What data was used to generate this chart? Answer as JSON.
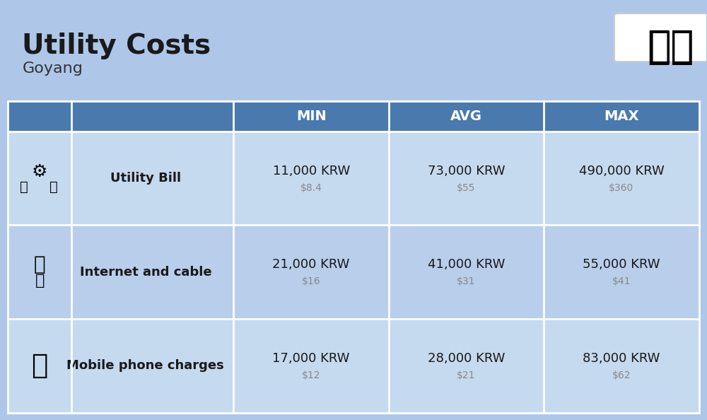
{
  "title": "Utility Costs",
  "subtitle": "Goyang",
  "background_color": "#aec6e8",
  "header_bg_color": "#4a7aad",
  "header_text_color": "#ffffff",
  "row_bg_color_1": "#c5d9ef",
  "row_bg_color_2": "#b8ceea",
  "table_border_color": "#ffffff",
  "col_headers": [
    "MIN",
    "AVG",
    "MAX"
  ],
  "rows": [
    {
      "label": "Utility Bill",
      "icon": "utility",
      "values_krw": [
        "11,000 KRW",
        "73,000 KRW",
        "490,000 KRW"
      ],
      "values_usd": [
        "$8.4",
        "$55",
        "$360"
      ]
    },
    {
      "label": "Internet and cable",
      "icon": "internet",
      "values_krw": [
        "21,000 KRW",
        "41,000 KRW",
        "55,000 KRW"
      ],
      "values_usd": [
        "$16",
        "$31",
        "$41"
      ]
    },
    {
      "label": "Mobile phone charges",
      "icon": "mobile",
      "values_krw": [
        "17,000 KRW",
        "28,000 KRW",
        "83,000 KRW"
      ],
      "values_usd": [
        "$12",
        "$21",
        "$62"
      ]
    }
  ],
  "title_fontsize": 28,
  "subtitle_fontsize": 16,
  "header_fontsize": 13,
  "label_fontsize": 13,
  "value_fontsize": 13,
  "usd_fontsize": 10,
  "usd_color": "#888888",
  "flag_emoji": "🇰🇷"
}
